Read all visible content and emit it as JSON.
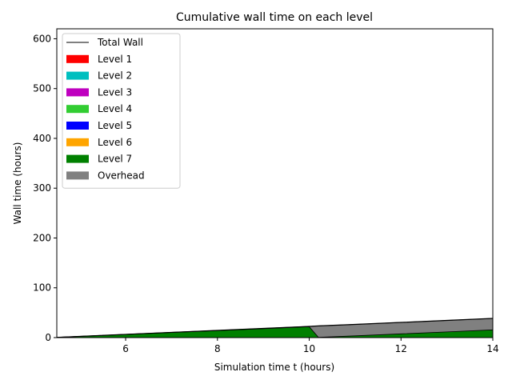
{
  "chart_data": {
    "type": "area",
    "title": "Cumulative wall time on each level",
    "xlabel": "Simulation time t (hours)",
    "ylabel": "Wall time (hours)",
    "xlim": [
      4.5,
      14
    ],
    "ylim": [
      0,
      620
    ],
    "xticks": [
      6,
      8,
      10,
      12,
      14
    ],
    "yticks": [
      0,
      100,
      200,
      300,
      400,
      500,
      600
    ],
    "grid": false,
    "legend_position": "top-left",
    "total_wall": {
      "name": "Total Wall",
      "color": "#000000",
      "x": [
        4.5,
        5.0,
        6.0,
        7.0,
        8.0,
        9.0,
        10.0,
        10.2,
        11.0,
        12.0,
        13.0,
        14.0
      ],
      "y": [
        0.5,
        2.5,
        6.5,
        10.5,
        14.5,
        18.5,
        22.5,
        23.5,
        26.5,
        30.5,
        34.5,
        38.5
      ]
    },
    "series": [
      {
        "name": "Level 1",
        "color": "#ff0000",
        "x": [
          4.5,
          14.0
        ],
        "y": [
          0,
          0
        ]
      },
      {
        "name": "Level 2",
        "color": "#00bfbf",
        "x": [
          4.5,
          14.0
        ],
        "y": [
          0,
          0
        ]
      },
      {
        "name": "Level 3",
        "color": "#bf00bf",
        "x": [
          4.5,
          14.0
        ],
        "y": [
          0,
          0
        ]
      },
      {
        "name": "Level 4",
        "color": "#32cd32",
        "x": [
          4.5,
          14.0
        ],
        "y": [
          0,
          0
        ]
      },
      {
        "name": "Level 5",
        "color": "#0000ff",
        "x": [
          4.5,
          14.0
        ],
        "y": [
          0,
          0
        ]
      },
      {
        "name": "Level 6",
        "color": "#ffa500",
        "x": [
          4.5,
          14.0
        ],
        "y": [
          0,
          0
        ]
      },
      {
        "name": "Level 7",
        "color": "#008000",
        "x": [
          4.5,
          5.0,
          6.0,
          7.0,
          8.0,
          9.0,
          10.0,
          10.2,
          11.0,
          12.0,
          13.0,
          14.0
        ],
        "y": [
          0.5,
          2.4,
          6.3,
          10.2,
          14.1,
          18.0,
          21.8,
          0.5,
          3.5,
          7.5,
          11.5,
          15.5
        ]
      },
      {
        "name": "Overhead",
        "color": "#808080",
        "x": [
          4.5,
          5.0,
          6.0,
          7.0,
          8.0,
          9.0,
          10.0,
          10.2,
          11.0,
          12.0,
          13.0,
          14.0
        ],
        "y": [
          0.5,
          2.5,
          6.5,
          10.5,
          14.5,
          18.5,
          22.5,
          23.5,
          26.5,
          30.5,
          34.5,
          38.5
        ]
      }
    ]
  }
}
